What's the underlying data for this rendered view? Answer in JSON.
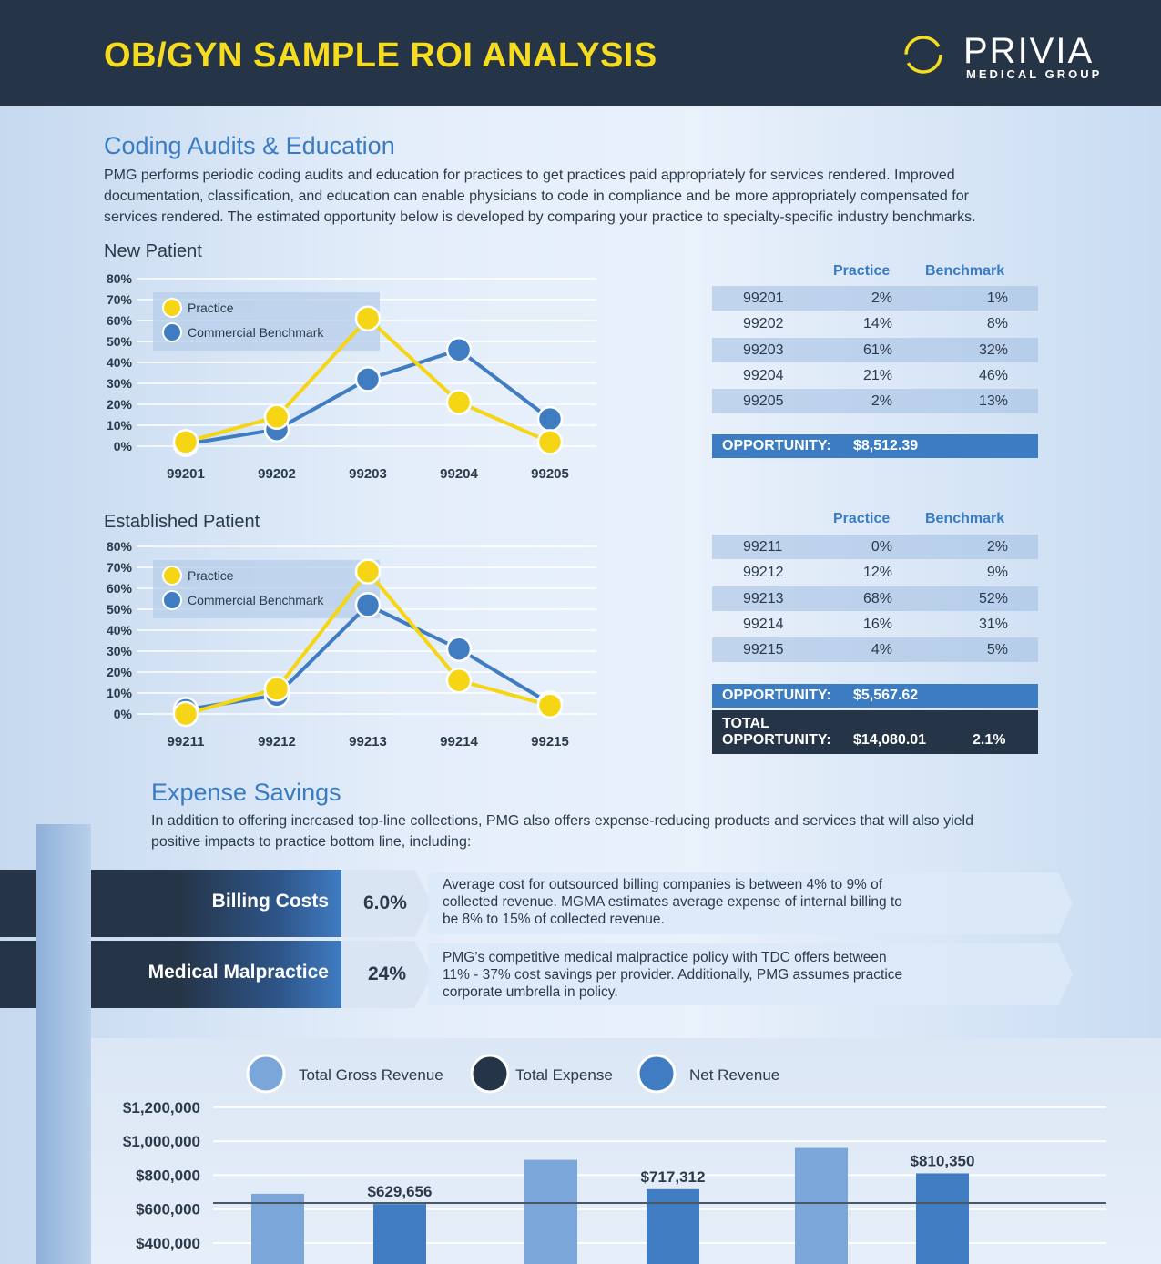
{
  "header": {
    "title": "OB/GYN SAMPLE ROI ANALYSIS",
    "logo_name": "PRIVIA",
    "logo_sub": "MEDICAL GROUP"
  },
  "coding": {
    "title": "Coding Audits & Education",
    "paragraph": [
      "PMG performs periodic coding audits and education for practices to get practices paid appropriately for services rendered. Improved",
      "documentation, classification, and education can enable physicians to code in compliance and be more appropriately compensated for",
      "services rendered. The estimated opportunity below is developed by comparing your practice to specialty-specific industry benchmarks."
    ]
  },
  "chart_data": [
    {
      "type": "line",
      "title": "New Patient",
      "categories": [
        "99201",
        "99202",
        "99203",
        "99204",
        "99205"
      ],
      "series": [
        {
          "name": "Practice",
          "values": [
            2,
            14,
            61,
            21,
            2
          ],
          "color": "#f5d514"
        },
        {
          "name": "Commercial Benchmark",
          "values": [
            1,
            8,
            32,
            46,
            13
          ],
          "color": "#3f7cc2"
        }
      ],
      "yticks": [
        "80%",
        "70%",
        "60%",
        "50%",
        "40%",
        "30%",
        "20%",
        "10%",
        "0%"
      ],
      "ylim": [
        0,
        80
      ],
      "grid": true,
      "legend": "top-left"
    },
    {
      "type": "line",
      "title": "Established Patient",
      "categories": [
        "99211",
        "99212",
        "99213",
        "99214",
        "99215"
      ],
      "series": [
        {
          "name": "Practice",
          "values": [
            0,
            12,
            68,
            16,
            4
          ],
          "color": "#f5d514"
        },
        {
          "name": "Commercial Benchmark",
          "values": [
            2,
            9,
            52,
            31,
            5
          ],
          "color": "#3f7cc2"
        }
      ],
      "yticks": [
        "80%",
        "70%",
        "60%",
        "50%",
        "40%",
        "30%",
        "20%",
        "10%",
        "0%"
      ],
      "ylim": [
        0,
        80
      ],
      "grid": true,
      "legend": "top-left"
    },
    {
      "type": "bar",
      "series": [
        {
          "name": "Total Gross Revenue",
          "color": "#7ba6d9",
          "values": [
            690000,
            890000,
            960000
          ]
        },
        {
          "name": "Total Expense",
          "color": "#253447",
          "values": []
        },
        {
          "name": "Net Revenue",
          "color": "#3f7cc2",
          "values": [
            629656,
            717312,
            810350
          ]
        }
      ],
      "net_labels": [
        "$629,656",
        "$717,312",
        "$810,350"
      ],
      "yticks": [
        "$1,200,000",
        "$1,000,000",
        "$800,000",
        "$600,000",
        "$400,000"
      ],
      "ylim": [
        400000,
        1200000
      ],
      "grid": true,
      "legend": "top"
    }
  ],
  "new_table": {
    "headers": [
      "Practice",
      "Benchmark"
    ],
    "rows": [
      [
        "99201",
        "2%",
        "1%"
      ],
      [
        "99202",
        "14%",
        "8%"
      ],
      [
        "99203",
        "61%",
        "32%"
      ],
      [
        "99204",
        "21%",
        "46%"
      ],
      [
        "99205",
        "2%",
        "13%"
      ]
    ],
    "opp_label": "OPPORTUNITY:",
    "opp_value": "$8,512.39"
  },
  "est_table": {
    "headers": [
      "Practice",
      "Benchmark"
    ],
    "rows": [
      [
        "99211",
        "0%",
        "2%"
      ],
      [
        "99212",
        "12%",
        "9%"
      ],
      [
        "99213",
        "68%",
        "52%"
      ],
      [
        "99214",
        "16%",
        "31%"
      ],
      [
        "99215",
        "4%",
        "5%"
      ]
    ],
    "opp_label": "OPPORTUNITY:",
    "opp_value": "$5,567.62",
    "total_label_1": "TOTAL",
    "total_label_2": "OPPORTUNITY:",
    "total_value": "$14,080.01",
    "total_pct": "2.1%"
  },
  "expense": {
    "title": "Expense Savings",
    "paragraph": [
      "In addition to offering increased top-line collections, PMG also offers expense-reducing products and services that will also yield",
      "positive impacts to practice bottom line, including:"
    ],
    "items": [
      {
        "label": "Billing Costs",
        "pct": "6.0%",
        "desc": [
          "Average cost for outsourced billing companies is between 4% to 9% of",
          "collected revenue. MGMA estimates average expense of internal billing to",
          "be 8% to 15% of collected revenue."
        ]
      },
      {
        "label": "Medical Malpractice",
        "pct": "24%",
        "desc": [
          "PMG’s competitive medical malpractice policy with TDC offers between",
          "11% - 37% cost savings per provider. Additionally, PMG assumes practice",
          "corporate umbrella in policy."
        ]
      }
    ]
  }
}
